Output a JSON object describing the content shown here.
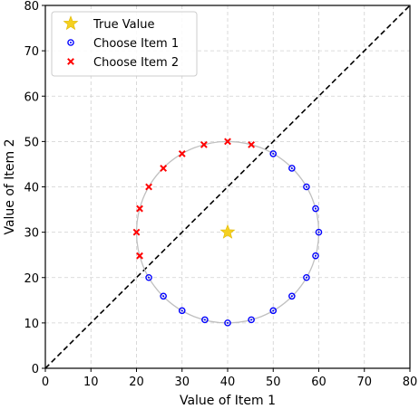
{
  "chart_data": {
    "type": "scatter",
    "xlabel": "Value of Item 1",
    "ylabel": "Value of Item 2",
    "xlim": [
      0,
      80
    ],
    "ylim": [
      0,
      80
    ],
    "xticks": [
      "0",
      "10",
      "20",
      "30",
      "40",
      "50",
      "60",
      "70",
      "80"
    ],
    "yticks": [
      "0",
      "10",
      "20",
      "30",
      "40",
      "50",
      "60",
      "70",
      "80"
    ],
    "grid": true,
    "legend_position": "top-left",
    "indifference_line": [
      [
        0,
        0
      ],
      [
        80,
        80
      ]
    ],
    "circle": {
      "center": [
        40,
        30
      ],
      "radius": 20,
      "color": "#c0c0c0"
    },
    "series": [
      {
        "name": "True Value",
        "marker": "star",
        "color": "#f5d020",
        "points": [
          [
            40,
            30
          ]
        ]
      },
      {
        "name": "Choose Item 1",
        "marker": "circle",
        "color": "#0000ff",
        "points": [
          [
            45.2,
            10.7
          ],
          [
            50.0,
            12.7
          ],
          [
            54.1,
            15.9
          ],
          [
            57.3,
            20.0
          ],
          [
            59.3,
            24.8
          ],
          [
            60.0,
            30.0
          ],
          [
            59.3,
            35.2
          ],
          [
            57.3,
            40.0
          ],
          [
            54.1,
            44.1
          ],
          [
            50.0,
            47.3
          ],
          [
            40.0,
            10.0
          ],
          [
            35.0,
            10.7
          ],
          [
            30.0,
            12.7
          ],
          [
            25.9,
            15.9
          ],
          [
            22.7,
            20.0
          ]
        ]
      },
      {
        "name": "Choose Item 2",
        "marker": "x",
        "color": "#ff0000",
        "points": [
          [
            20.7,
            24.8
          ],
          [
            20.0,
            30.0
          ],
          [
            20.7,
            35.2
          ],
          [
            22.7,
            40.0
          ],
          [
            25.9,
            44.1
          ],
          [
            30.0,
            47.3
          ],
          [
            34.8,
            49.3
          ],
          [
            40.0,
            50.0
          ],
          [
            45.2,
            49.3
          ]
        ]
      }
    ]
  }
}
